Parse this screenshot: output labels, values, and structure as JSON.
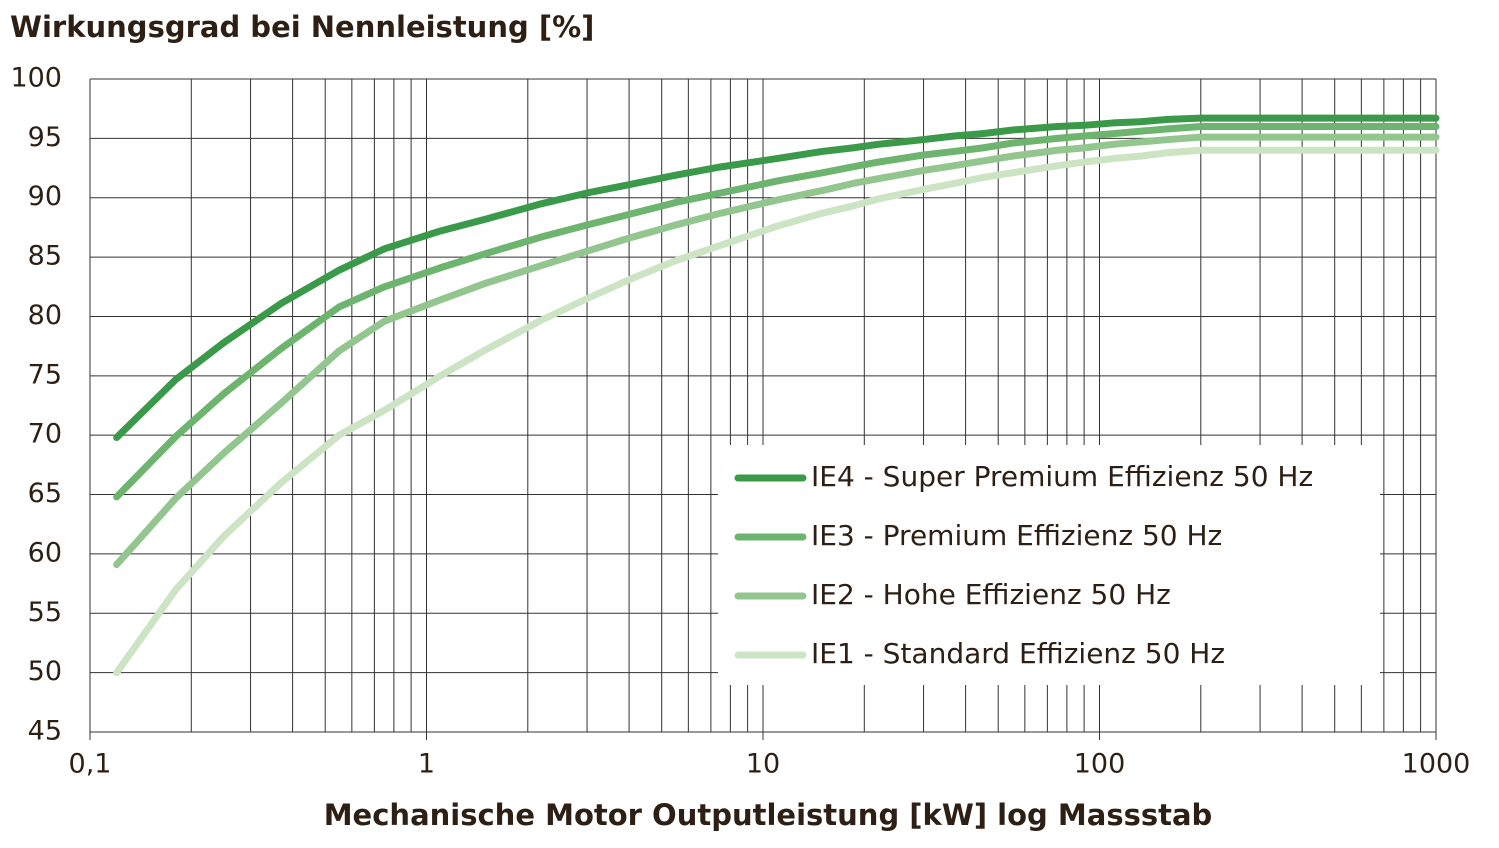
{
  "chart_data": {
    "type": "line",
    "y_label": "Wirkungsgrad bei Nennleistung  [%]",
    "x_label": "Mechanische Motor Outputleistung [kW] log Massstab",
    "x_scale": "log",
    "x": [
      0.12,
      0.18,
      0.25,
      0.37,
      0.55,
      0.75,
      1.1,
      1.5,
      2.2,
      3,
      4,
      5.5,
      7.5,
      11,
      15,
      18.5,
      22,
      30,
      37,
      45,
      55,
      75,
      90,
      110,
      132,
      160,
      200,
      1000
    ],
    "series": [
      {
        "name": "IE4 - Super Premium Effizienz 50 Hz",
        "color": "#3a9a4a",
        "values": [
          69.8,
          74.7,
          77.8,
          81.1,
          83.9,
          85.7,
          87.2,
          88.2,
          89.5,
          90.4,
          91.1,
          91.9,
          92.6,
          93.3,
          93.9,
          94.2,
          94.5,
          94.9,
          95.2,
          95.4,
          95.7,
          96.0,
          96.1,
          96.3,
          96.4,
          96.6,
          96.7,
          96.7
        ]
      },
      {
        "name": "IE3 - Premium Effizienz 50 Hz",
        "color": "#6db56f",
        "values": [
          64.8,
          69.9,
          73.5,
          77.3,
          80.8,
          82.5,
          84.1,
          85.3,
          86.7,
          87.7,
          88.6,
          89.6,
          90.4,
          91.4,
          92.1,
          92.6,
          93.0,
          93.6,
          93.9,
          94.2,
          94.6,
          95.0,
          95.2,
          95.4,
          95.6,
          95.8,
          96.0,
          96.0
        ]
      },
      {
        "name": "IE2 - Hohe Effizienz 50 Hz",
        "color": "#93c68e",
        "values": [
          59.1,
          64.7,
          68.5,
          72.7,
          77.1,
          79.6,
          81.4,
          82.8,
          84.3,
          85.5,
          86.6,
          87.7,
          88.7,
          89.8,
          90.6,
          91.2,
          91.6,
          92.3,
          92.7,
          93.1,
          93.5,
          94.0,
          94.2,
          94.5,
          94.7,
          94.9,
          95.1,
          95.1
        ]
      },
      {
        "name": "IE1 - Standard Effizienz 50 Hz",
        "color": "#cce4c3",
        "values": [
          50.0,
          57.0,
          61.5,
          66.0,
          70.0,
          72.1,
          75.0,
          77.2,
          79.7,
          81.5,
          83.1,
          84.7,
          86.0,
          87.6,
          88.7,
          89.3,
          89.9,
          90.7,
          91.2,
          91.7,
          92.1,
          92.7,
          93.0,
          93.3,
          93.5,
          93.8,
          94.0,
          94.0
        ]
      }
    ],
    "xlim": [
      0.1,
      1000
    ],
    "xticks": [
      {
        "value": 0.1,
        "label": "0,1"
      },
      1,
      10,
      100,
      1000
    ],
    "ylim": [
      45,
      100
    ],
    "yticks": [
      45,
      50,
      55,
      60,
      65,
      70,
      75,
      80,
      85,
      90,
      95,
      100
    ],
    "grid": true,
    "legend": "lower right"
  }
}
